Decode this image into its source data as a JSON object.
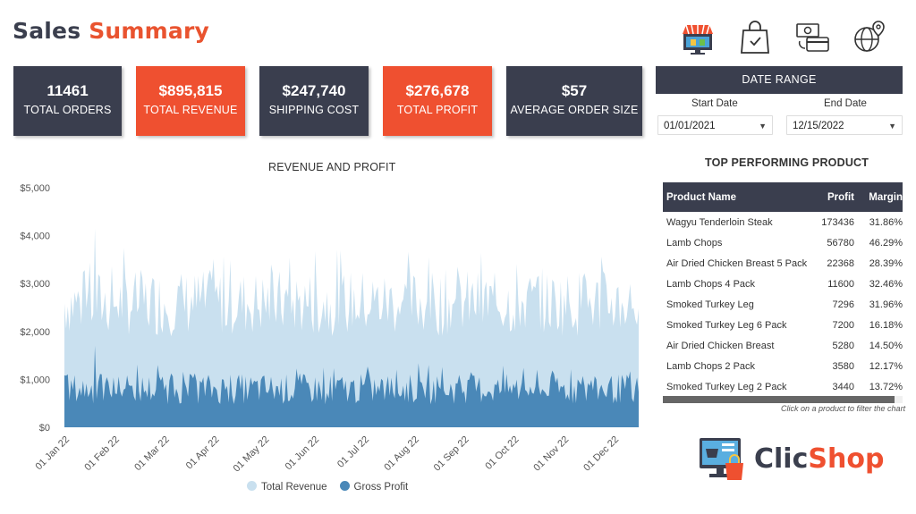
{
  "header": {
    "title_part1": "Sales",
    "title_part2": "Summary"
  },
  "icons": [
    "store-icon",
    "shopping-bag-icon",
    "payment-icon",
    "globe-delivery-icon"
  ],
  "kpis": [
    {
      "value": "11461",
      "label": "TOTAL ORDERS"
    },
    {
      "value": "$895,815",
      "label": "TOTAL REVENUE"
    },
    {
      "value": "$247,740",
      "label": "SHIPPING COST"
    },
    {
      "value": "$276,678",
      "label": "TOTAL PROFIT"
    },
    {
      "value": "$57",
      "label": "AVERAGE ORDER SIZE"
    }
  ],
  "date_range": {
    "title": "DATE RANGE",
    "start_label": "Start Date",
    "end_label": "End Date",
    "start_value": "01/01/2021",
    "end_value": "12/15/2022"
  },
  "chart_data": {
    "type": "area",
    "title": "REVENUE AND PROFIT",
    "ylim": [
      0,
      5000
    ],
    "y_ticks": [
      0,
      1000,
      2000,
      3000,
      4000,
      5000
    ],
    "y_tick_labels": [
      "$0",
      "$1,000",
      "$2,000",
      "$3,000",
      "$4,000",
      "$5,000"
    ],
    "x_tick_labels": [
      "01 Jan 22",
      "01 Feb 22",
      "01 Mar 22",
      "01 Apr 22",
      "01 May 22",
      "01 Jun 22",
      "01 Jul 22",
      "01 Aug 22",
      "01 Sep 22",
      "01 Oct 22",
      "01 Nov 22",
      "01 Dec 22"
    ],
    "series": [
      {
        "name": "Total Revenue",
        "color": "#c9e0ef",
        "avg": 2600,
        "amp": 700,
        "peak": 4150
      },
      {
        "name": "Gross Profit",
        "color": "#4a88b8",
        "avg": 800,
        "amp": 320,
        "peak": 1700
      }
    ],
    "grid": false,
    "legend": "bottom"
  },
  "top_products": {
    "title": "TOP PERFORMING PRODUCT",
    "headers": {
      "name": "Product Name",
      "profit": "Profit",
      "margin": "Margin"
    },
    "rows": [
      {
        "name": "Wagyu Tenderloin Steak",
        "profit": "173436",
        "margin": "31.86%"
      },
      {
        "name": "Lamb Chops",
        "profit": "56780",
        "margin": "46.29%"
      },
      {
        "name": "Air Dried Chicken Breast 5 Pack",
        "profit": "22368",
        "margin": "28.39%"
      },
      {
        "name": "Lamb Chops 4 Pack",
        "profit": "11600",
        "margin": "32.46%"
      },
      {
        "name": "Smoked Turkey Leg",
        "profit": "7296",
        "margin": "31.96%"
      },
      {
        "name": "Smoked Turkey Leg 6 Pack",
        "profit": "7200",
        "margin": "16.18%"
      },
      {
        "name": "Air Dried Chicken Breast",
        "profit": "5280",
        "margin": "14.50%"
      },
      {
        "name": "Lamb Chops 2 Pack",
        "profit": "3580",
        "margin": "12.17%"
      },
      {
        "name": "Smoked Turkey Leg 2 Pack",
        "profit": "3440",
        "margin": "13.72%"
      }
    ],
    "hint": "Click on a product to filter the chart"
  },
  "brand": {
    "part1": "Clic",
    "part2": "Shop"
  }
}
